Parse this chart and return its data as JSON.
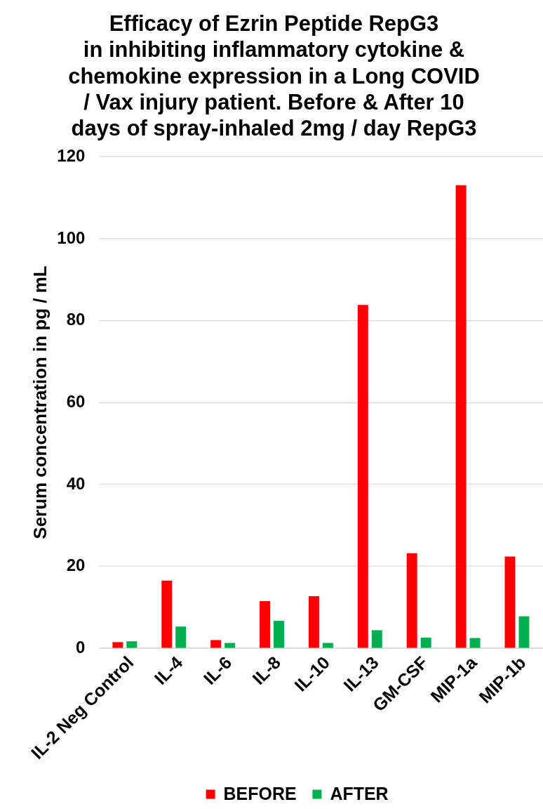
{
  "chart_data": {
    "type": "bar",
    "title": "Efficacy of Ezrin Peptide RepG3\nin inhibiting inflammatory cytokine &\nchemokine expression in a Long COVID\n/ Vax injury patient. Before & After 10\ndays of spray-inhaled 2mg / day RepG3",
    "ylabel": "Serum concentration in pg / mL",
    "categories": [
      "IL-2 Neg Control",
      "IL-4",
      "IL-6",
      "IL-8",
      "IL-10",
      "IL-13",
      "GM-CSF",
      "MIP-1a",
      "MIP-1b"
    ],
    "series": [
      {
        "name": "BEFORE",
        "color": "#ff0000",
        "values": [
          1.4,
          16.4,
          1.9,
          11.4,
          12.6,
          83.7,
          23.1,
          112.9,
          22.3
        ]
      },
      {
        "name": "AFTER",
        "color": "#00b050",
        "values": [
          1.6,
          5.2,
          1.2,
          6.6,
          1.2,
          4.3,
          2.5,
          2.4,
          7.7
        ]
      }
    ],
    "ylim": [
      0,
      120
    ],
    "yticks": [
      0,
      20,
      40,
      60,
      80,
      100,
      120
    ],
    "grid": "y",
    "legend": "bottom"
  }
}
